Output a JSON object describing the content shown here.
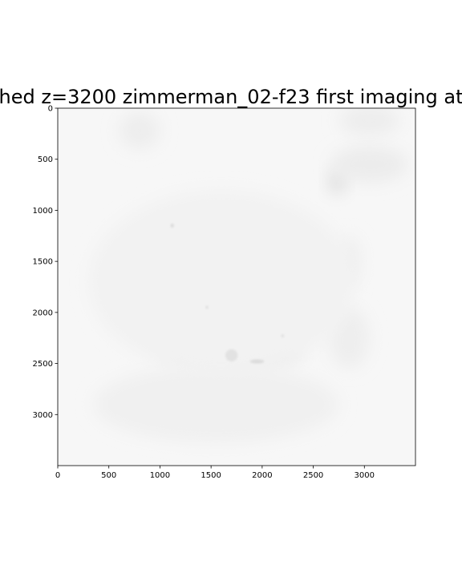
{
  "chart_data": {
    "type": "heatmap",
    "title": "hed z=3200 zimmerman_02-f23 first imaging at",
    "xlabel": "",
    "ylabel": "",
    "xlim": [
      0,
      3500
    ],
    "ylim": [
      3500,
      0
    ],
    "x_ticks": [
      0,
      500,
      1000,
      1500,
      2000,
      2500,
      3000
    ],
    "y_ticks": [
      0,
      500,
      1000,
      1500,
      2000,
      2500,
      3000
    ],
    "colormap": "gray",
    "background_color": "#f7f7f7",
    "grid": false,
    "features": [
      {
        "kind": "blob",
        "x": 2735,
        "y": 720,
        "rx": 90,
        "ry": 120,
        "color": "#dedede"
      },
      {
        "kind": "blob",
        "x": 3050,
        "y": 550,
        "rx": 380,
        "ry": 180,
        "color": "#ececec"
      },
      {
        "kind": "blob",
        "x": 3050,
        "y": 120,
        "rx": 300,
        "ry": 150,
        "color": "#ededed"
      },
      {
        "kind": "blob",
        "x": 800,
        "y": 220,
        "rx": 200,
        "ry": 180,
        "color": "#ededed"
      },
      {
        "kind": "blob",
        "x": 1700,
        "y": 2400,
        "rx": 700,
        "ry": 180,
        "color": "#ebebeb"
      },
      {
        "kind": "blob",
        "x": 2850,
        "y": 2250,
        "rx": 200,
        "ry": 300,
        "color": "#eeeeee"
      },
      {
        "kind": "blob",
        "x": 2850,
        "y": 1500,
        "rx": 120,
        "ry": 250,
        "color": "#efefef"
      },
      {
        "kind": "blob",
        "x": 1550,
        "y": 2900,
        "rx": 1200,
        "ry": 380,
        "color": "#f0f0f0"
      },
      {
        "kind": "blob",
        "x": 1600,
        "y": 1700,
        "rx": 1300,
        "ry": 900,
        "color": "#f2f2f2"
      },
      {
        "kind": "speck",
        "x": 1120,
        "y": 1150,
        "rx": 15,
        "ry": 20,
        "color": "#d9d9d9"
      },
      {
        "kind": "speck",
        "x": 1460,
        "y": 1950,
        "rx": 12,
        "ry": 15,
        "color": "#dcdcdc"
      },
      {
        "kind": "speck",
        "x": 1950,
        "y": 2480,
        "rx": 70,
        "ry": 20,
        "color": "#dcdcdc"
      },
      {
        "kind": "speck",
        "x": 2200,
        "y": 2230,
        "rx": 15,
        "ry": 15,
        "color": "#e0e0e0"
      },
      {
        "kind": "speck",
        "x": 1700,
        "y": 2420,
        "rx": 60,
        "ry": 60,
        "color": "#e2e2e2"
      }
    ]
  }
}
